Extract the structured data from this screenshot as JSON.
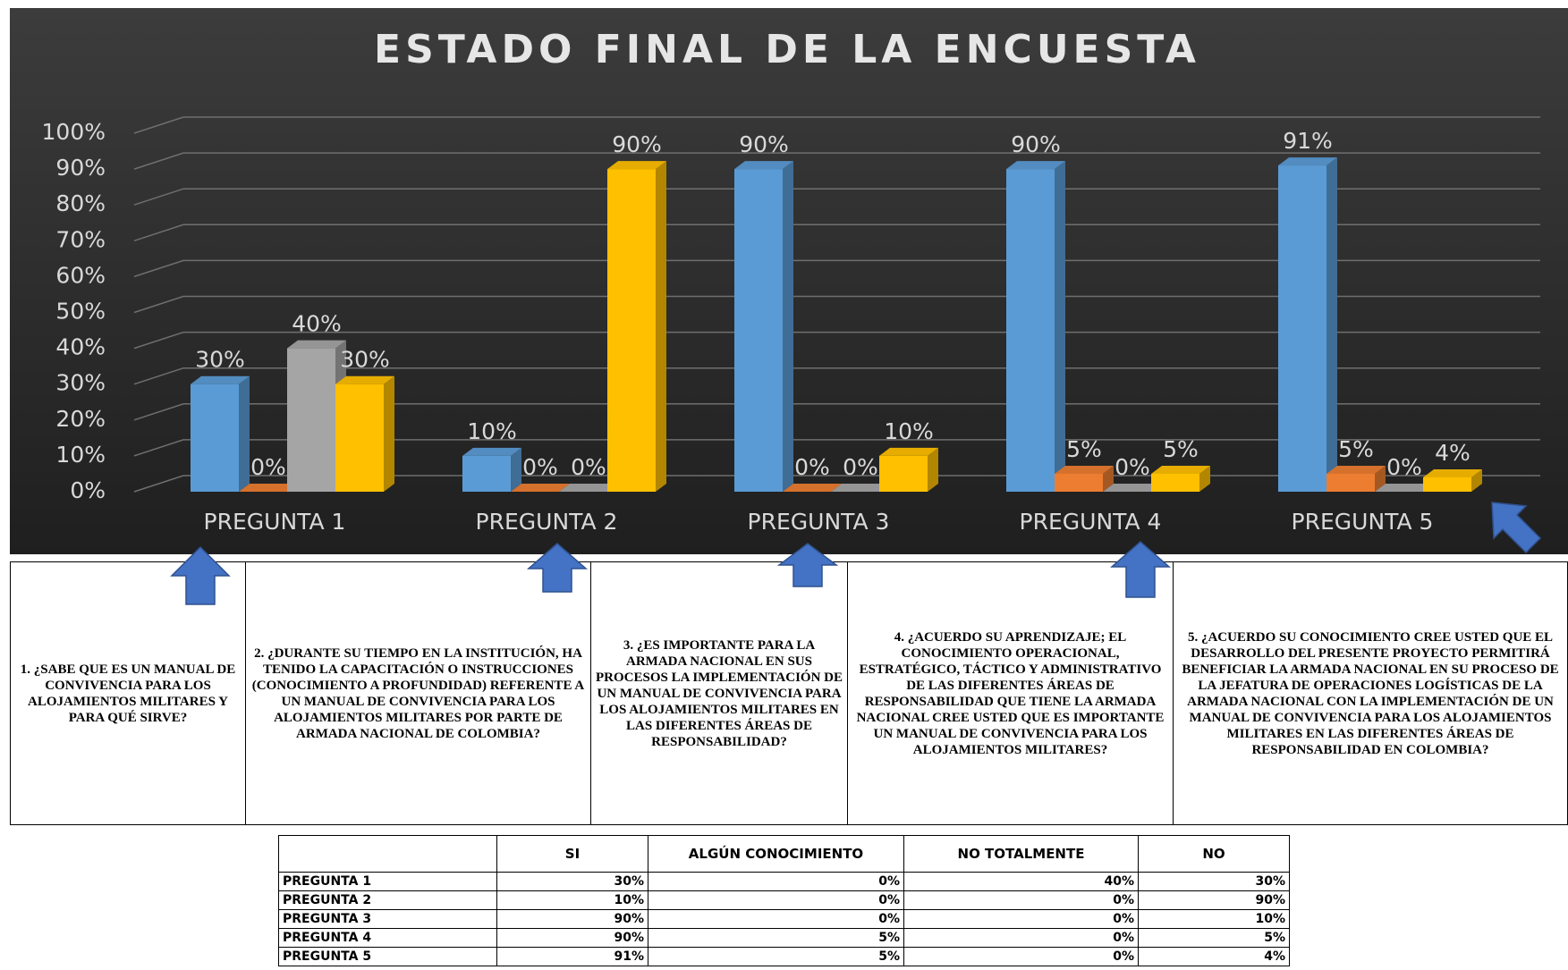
{
  "chart_data": {
    "type": "bar3d",
    "title": "ESTADO FINAL DE LA ENCUESTA",
    "categories": [
      "PREGUNTA 1",
      "PREGUNTA 2",
      "PREGUNTA 3",
      "PREGUNTA 4",
      "PREGUNTA 5"
    ],
    "series": [
      {
        "name": "SI",
        "color": "#5b9bd5",
        "values": [
          30,
          10,
          90,
          90,
          91
        ],
        "value_labels": [
          "30%",
          "10%",
          "90%",
          "90%",
          "91%"
        ]
      },
      {
        "name": "ALGÚN CONOCIMIENTO",
        "color": "#ed7d31",
        "values": [
          0,
          0,
          0,
          5,
          5
        ],
        "value_labels": [
          "0%",
          "0%",
          "0%",
          "5%",
          "5%"
        ]
      },
      {
        "name": "NO TOTALMENTE",
        "color": "#a5a5a5",
        "values": [
          40,
          0,
          0,
          0,
          0
        ],
        "value_labels": [
          "40%",
          "0%",
          "0%",
          "0%",
          "0%"
        ]
      },
      {
        "name": "NO",
        "color": "#ffc000",
        "values": [
          30,
          90,
          10,
          5,
          4
        ],
        "value_labels": [
          "30%",
          "90%",
          "10%",
          "5%",
          "4%"
        ]
      }
    ],
    "ylim": [
      0,
      100
    ],
    "yticks": [
      {
        "value": 0,
        "label": "0%"
      },
      {
        "value": 10,
        "label": "10%"
      },
      {
        "value": 20,
        "label": "20%"
      },
      {
        "value": 30,
        "label": "30%"
      },
      {
        "value": 40,
        "label": "40%"
      },
      {
        "value": 50,
        "label": "50%"
      },
      {
        "value": 60,
        "label": "60%"
      },
      {
        "value": 70,
        "label": "70%"
      },
      {
        "value": 80,
        "label": "80%"
      },
      {
        "value": 90,
        "label": "90%"
      },
      {
        "value": 100,
        "label": "100%"
      }
    ],
    "grid": true
  },
  "questions": [
    "1. ¿SABE QUE ES UN MANUAL DE CONVIVENCIA PARA LOS ALOJAMIENTOS MILITARES Y PARA QUÉ SIRVE?",
    "2. ¿DURANTE SU TIEMPO EN LA INSTITUCIÓN, HA TENIDO LA CAPACITACIÓN O INSTRUCCIONES (CONOCIMIENTO A PROFUNDIDAD) REFERENTE A UN MANUAL DE CONVIVENCIA PARA LOS ALOJAMIENTOS MILITARES POR PARTE DE ARMADA NACIONAL DE COLOMBIA?",
    "3. ¿ES IMPORTANTE PARA LA ARMADA NACIONAL EN SUS PROCESOS LA IMPLEMENTACIÓN DE UN MANUAL DE CONVIVENCIA PARA LOS ALOJAMIENTOS MILITARES EN LAS DIFERENTES ÁREAS DE RESPONSABILIDAD?",
    "4. ¿ACUERDO SU APRENDIZAJE; EL CONOCIMIENTO OPERACIONAL, ESTRATÉGICO, TÁCTICO Y ADMINISTRATIVO DE LAS DIFERENTES ÁREAS DE RESPONSABILIDAD QUE TIENE LA ARMADA NACIONAL CREE USTED QUE ES IMPORTANTE UN MANUAL DE CONVIVENCIA PARA LOS ALOJAMIENTOS MILITARES?",
    "5. ¿ACUERDO SU CONOCIMIENTO CREE USTED QUE EL DESARROLLO DEL PRESENTE PROYECTO PERMITIRÁ BENEFICIAR LA ARMADA NACIONAL EN SU PROCESO DE LA JEFATURA DE OPERACIONES LOGÍSTICAS DE LA ARMADA NACIONAL CON LA IMPLEMENTACIÓN DE UN MANUAL DE CONVIVENCIA PARA LOS ALOJAMIENTOS MILITARES EN LAS DIFERENTES ÁREAS DE RESPONSABILIDAD EN COLOMBIA?"
  ]
}
